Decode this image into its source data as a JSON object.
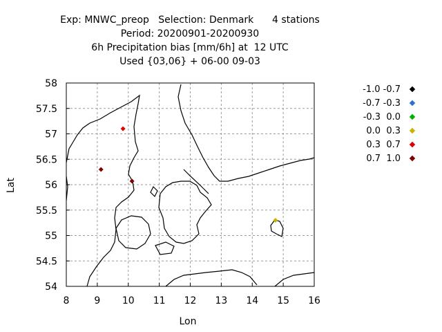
{
  "title": {
    "line1": "Exp: MNWC_preop   Selection: Denmark      4 stations",
    "line2": "Period: 20200901-20200930",
    "line3": "6h Precipitation bias [mm/6h] at  12 UTC",
    "line4": "Used {03,06} + 06-00 09-03"
  },
  "chart_data": {
    "type": "scatter",
    "xlabel": "Lon",
    "ylabel": "Lat",
    "xlim": [
      8,
      16
    ],
    "ylim": [
      54,
      58
    ],
    "xticks": [
      "8",
      "9",
      "10",
      "11",
      "12",
      "13",
      "14",
      "15",
      "16"
    ],
    "yticks": [
      "54",
      "54.5",
      "55",
      "55.5",
      "56",
      "56.5",
      "57",
      "57.5",
      "58"
    ],
    "grid": true,
    "legend_position": "right",
    "legend": [
      {
        "label": "-1.0 -0.7",
        "color": "#000000"
      },
      {
        "label": "-0.7 -0.3",
        "color": "#2d6ed6"
      },
      {
        "label": "-0.3  0.0",
        "color": "#00b000"
      },
      {
        "label": " 0.0  0.3",
        "color": "#c8b400"
      },
      {
        "label": " 0.3  0.7",
        "color": "#e00000"
      },
      {
        "label": " 0.7  1.0",
        "color": "#800000"
      }
    ],
    "points": [
      {
        "lon": 9.83,
        "lat": 57.1,
        "color": "#e00000"
      },
      {
        "lon": 9.12,
        "lat": 56.3,
        "color": "#800000"
      },
      {
        "lon": 10.12,
        "lat": 56.07,
        "color": "#800000"
      },
      {
        "lon": 14.75,
        "lat": 55.3,
        "color": "#c8b400"
      }
    ]
  }
}
